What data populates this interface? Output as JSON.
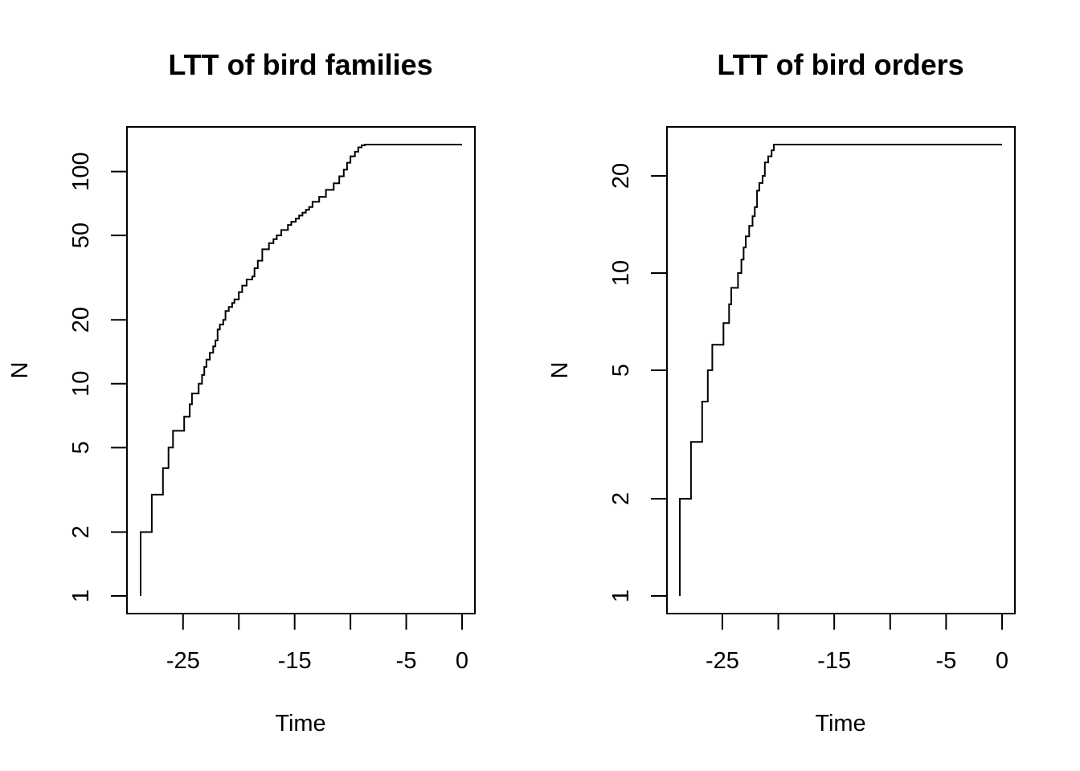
{
  "chart_data": [
    {
      "type": "line",
      "step": true,
      "title": "LTT of bird families",
      "xlabel": "Time",
      "ylabel": "N",
      "y_scale": "log",
      "xlim": [
        -30,
        0
      ],
      "ylim": [
        0.9,
        150
      ],
      "x_ticks": [
        -25,
        -20,
        -15,
        -10,
        -5,
        0
      ],
      "x_tick_labels": [
        "-25",
        "",
        "-15",
        "",
        "-5",
        "0"
      ],
      "y_ticks": [
        1,
        2,
        5,
        10,
        20,
        50,
        100
      ],
      "y_tick_labels": [
        "1",
        "2",
        "5",
        "10",
        "20",
        "50",
        "100"
      ],
      "grid": false,
      "series": [
        {
          "x": [
            -28.8,
            -27.8,
            -26.8,
            -26.3,
            -25.9,
            -24.9,
            -24.4,
            -24.2,
            -23.6,
            -23.3,
            -23.1,
            -22.9,
            -22.6,
            -22.3,
            -22.1,
            -21.9,
            -21.7,
            -21.4,
            -21.2,
            -20.9,
            -20.6,
            -20.4,
            -20.0,
            -19.7,
            -19.3,
            -18.8,
            -18.6,
            -18.3,
            -17.9,
            -17.3,
            -16.9,
            -16.6,
            -16.2,
            -15.6,
            -15.3,
            -14.9,
            -14.6,
            -14.3,
            -14.0,
            -13.7,
            -13.4,
            -12.8,
            -12.2,
            -11.5,
            -11.0,
            -10.6,
            -10.3,
            -10.0,
            -9.6,
            -9.3,
            -9.0,
            -8.7,
            -8.3,
            0
          ],
          "y": [
            1,
            2,
            3,
            4,
            5,
            6,
            7,
            8,
            9,
            10,
            11,
            12,
            13,
            14,
            15,
            16,
            18,
            19,
            20,
            22,
            23,
            24,
            25,
            27,
            29,
            31,
            32,
            35,
            38,
            43,
            46,
            48,
            50,
            53,
            56,
            58,
            60,
            62,
            64,
            66,
            68,
            72,
            76,
            82,
            88,
            95,
            102,
            110,
            118,
            124,
            130,
            133,
            134,
            134
          ]
        }
      ]
    },
    {
      "type": "line",
      "step": true,
      "title": "LTT of bird orders",
      "xlabel": "Time",
      "ylabel": "N",
      "y_scale": "log",
      "xlim": [
        -30,
        0
      ],
      "ylim": [
        0.9,
        27
      ],
      "x_ticks": [
        -25,
        -20,
        -15,
        -10,
        -5,
        0
      ],
      "x_tick_labels": [
        "-25",
        "",
        "-15",
        "",
        "-5",
        "0"
      ],
      "y_ticks": [
        1,
        2,
        5,
        10,
        20
      ],
      "y_tick_labels": [
        "1",
        "2",
        "5",
        "10",
        "20"
      ],
      "grid": false,
      "series": [
        {
          "x": [
            -28.8,
            -27.8,
            -26.8,
            -26.3,
            -25.9,
            -24.9,
            -24.4,
            -24.2,
            -23.6,
            -23.3,
            -23.1,
            -22.9,
            -22.6,
            -22.3,
            -22.1,
            -21.9,
            -21.7,
            -21.4,
            -21.2,
            -20.9,
            -20.6,
            -20.4,
            -20.0,
            0
          ],
          "y": [
            1,
            2,
            3,
            4,
            5,
            6,
            7,
            8,
            9,
            10,
            11,
            12,
            13,
            14,
            15,
            16,
            18,
            19,
            20,
            22,
            23,
            24,
            25,
            25
          ]
        }
      ]
    }
  ]
}
